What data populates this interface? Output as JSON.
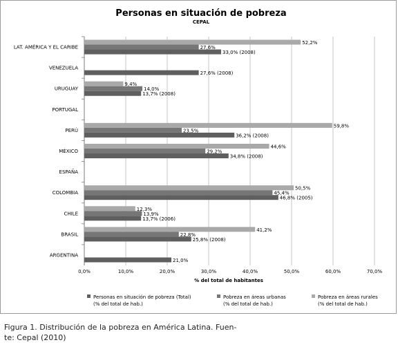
{
  "chart_data": {
    "type": "bar",
    "orientation": "horizontal",
    "title": "Personas en situación de pobreza",
    "subtitle": "CEPAL",
    "xlabel": "% del total de habitantes",
    "xlim": [
      0,
      70
    ],
    "x_ticks": [
      "0,0%",
      "10,0%",
      "20,0%",
      "30,0%",
      "40,0%",
      "50,0%",
      "60,0%",
      "70,0%"
    ],
    "grid": true,
    "legend_position": "bottom",
    "categories": [
      "LAT. AMÉRICA Y EL CARIBE",
      "VENEZUELA",
      "URUGUAY",
      "PORTUGAL",
      "PERÚ",
      "MÉXICO",
      "ESPAÑA",
      "COLOMBIA",
      "CHILE",
      "BRASIL",
      "ARGENTINA"
    ],
    "series": [
      {
        "name": "Personas en situación de pobreza (Total) (% del total de hab.)",
        "legend_lines": [
          "Personas en situación de pobreza (Total)",
          "(% del total de hab.)"
        ],
        "color": "#5f5f5f",
        "values": [
          33.0,
          27.6,
          13.7,
          null,
          36.2,
          34.8,
          null,
          46.8,
          13.7,
          25.8,
          21.0
        ],
        "labels": [
          "33,0% (2008)",
          "27,6% (2008)",
          "13,7% (2008)",
          null,
          "36,2% (2008)",
          "34,8% (2008)",
          null,
          "46,8% (2005)",
          "13,7% (2006)",
          "25,8% (2008)",
          "21,0%"
        ]
      },
      {
        "name": "Pobreza en áreas urbanas (% del total de hab.)",
        "legend_lines": [
          "Pobreza en áreas urbanas",
          "(% del total de hab.)"
        ],
        "color": "#767676",
        "values": [
          27.6,
          null,
          14.0,
          null,
          23.5,
          29.2,
          null,
          45.4,
          13.9,
          22.8,
          null
        ],
        "labels": [
          "27,6%",
          null,
          "14,0%",
          null,
          "23,5%",
          "29,2%",
          null,
          "45,4%",
          "13,9%",
          "22,8%",
          null
        ]
      },
      {
        "name": "Pobreza en áreas rurales (% del total de hab.)",
        "legend_lines": [
          "Pobreza en áreas rurales",
          "(% del total de hab.)"
        ],
        "color": "#a9a9a9",
        "values": [
          52.2,
          null,
          9.4,
          null,
          59.8,
          44.6,
          null,
          50.5,
          12.3,
          41.2,
          null
        ],
        "labels": [
          "52,2%",
          null,
          "9,4%",
          null,
          "59,8%",
          "44,6%",
          null,
          "50,5%",
          "12,3%",
          "41,2%",
          null
        ]
      }
    ]
  },
  "caption": {
    "line1": "Figura 1. Distribución de la pobreza en América Latina. Fuen-",
    "line2": "te: Cepal (2010)"
  }
}
